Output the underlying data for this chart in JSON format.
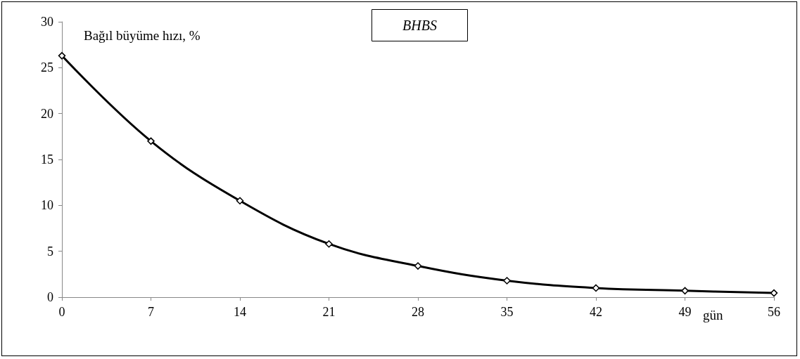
{
  "chart_data": {
    "type": "line",
    "title": "BHBS",
    "xlabel": "gün",
    "ylabel": "Bağıl büyüme hızı, %",
    "x": [
      0,
      7,
      14,
      21,
      28,
      35,
      42,
      49,
      56
    ],
    "series": [
      {
        "color": "#000000",
        "values": [
          26.3,
          17.0,
          10.5,
          5.8,
          3.4,
          1.8,
          1.0,
          0.7,
          0.45
        ]
      }
    ],
    "xlim": [
      0,
      56
    ],
    "xticks": [
      0,
      7,
      14,
      21,
      28,
      35,
      42,
      49,
      56
    ],
    "ylim": [
      0,
      30
    ],
    "yticks": [
      0,
      5,
      10,
      15,
      20,
      25,
      30
    ],
    "grid": false,
    "marker": "diamond",
    "line_style": "solid"
  }
}
